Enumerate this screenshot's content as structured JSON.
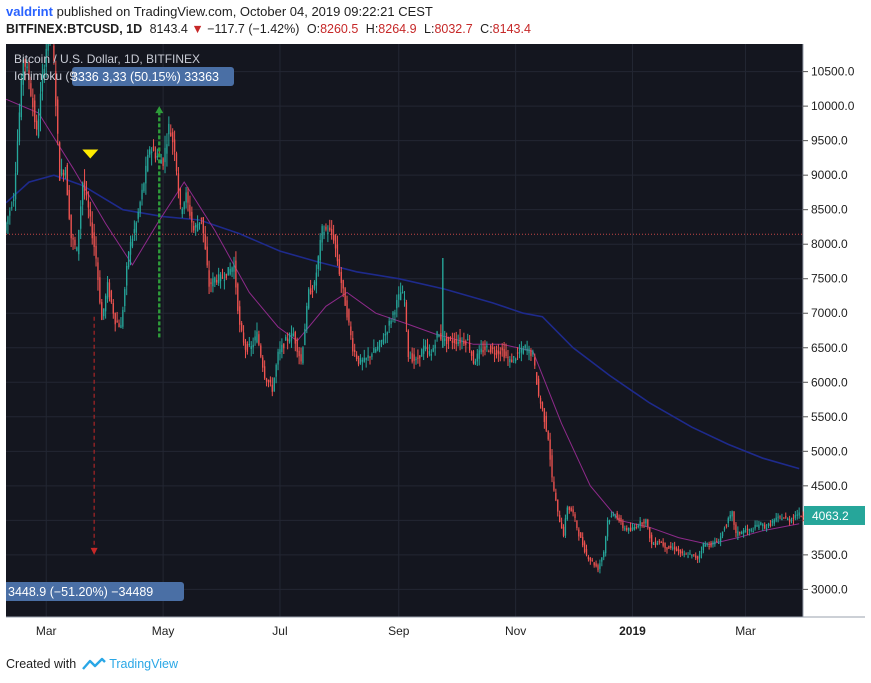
{
  "header": {
    "author": "valdrint",
    "published_text": "published on TradingView.com, October 04, 2019 09:22:21 CEST",
    "symbol": "BITFINEX:BTCUSD, 1D",
    "last": "8143.4",
    "change": "−117.7 (−1.42%)",
    "o_label": "O:",
    "o_value": "8260.5",
    "h_label": "H:",
    "h_value": "8264.9",
    "l_label": "L:",
    "l_value": "8032.7",
    "c_label": "C:",
    "c_value": "8143.4"
  },
  "legend": {
    "title": "Bitcoin / U.S. Dollar, 1D, BITFINEX",
    "indicator": "Ichimoku (9"
  },
  "footer": {
    "created_with": "Created with",
    "brand": "TradingView"
  },
  "colors": {
    "background": "#14161f",
    "grid": "#232733",
    "up": "#26a69a",
    "down": "#ef5350",
    "ma_slow": "#1e2a8c",
    "ma_fast": "#8e2a8a",
    "price_line": "#ef5350",
    "price_label_bg": "#26a69a",
    "measure_bg": "#4a6fa5",
    "marker": "#ffeb00",
    "measure_up": "#2e9d3a",
    "measure_down": "#c62828"
  },
  "chart_data": {
    "type": "candlestick",
    "y_ticks": [
      3000,
      3500,
      4000,
      4500,
      5000,
      5500,
      6000,
      6500,
      7000,
      7500,
      8000,
      8500,
      9000,
      9500,
      10000,
      10500
    ],
    "y_tick_labels": [
      "3000.0",
      "3500.0",
      "4000.0",
      "4500.0",
      "5000.0",
      "5500.0",
      "6000.0",
      "6500.0",
      "7000.0",
      "7500.0",
      "8000.0",
      "8500.0",
      "9000.0",
      "9500.0",
      "10000.0",
      "10500.0"
    ],
    "ylim": [
      2600,
      10900
    ],
    "x_range": [
      "2018-02-08",
      "2019-03-31"
    ],
    "x_ticks": [
      {
        "date": "2018-03-01",
        "label": "Mar"
      },
      {
        "date": "2018-05-01",
        "label": "May"
      },
      {
        "date": "2018-07-01",
        "label": "Jul"
      },
      {
        "date": "2018-09-01",
        "label": "Sep"
      },
      {
        "date": "2018-11-01",
        "label": "Nov"
      },
      {
        "date": "2019-01-01",
        "label": "2019"
      },
      {
        "date": "2019-03-01",
        "label": "Mar"
      }
    ],
    "current_price": 8143.4,
    "last_price_label": "4063.2",
    "last_price_value": 4063.2,
    "price_path": [
      [
        "2018-02-08",
        8200
      ],
      [
        "2018-02-13",
        8700
      ],
      [
        "2018-02-18",
        10700
      ],
      [
        "2018-02-21",
        10400
      ],
      [
        "2018-02-25",
        9600
      ],
      [
        "2018-02-28",
        10400
      ],
      [
        "2018-03-04",
        11300
      ],
      [
        "2018-03-06",
        10600
      ],
      [
        "2018-03-09",
        9000
      ],
      [
        "2018-03-12",
        9100
      ],
      [
        "2018-03-15",
        8100
      ],
      [
        "2018-03-18",
        7900
      ],
      [
        "2018-03-21",
        8900
      ],
      [
        "2018-03-24",
        8500
      ],
      [
        "2018-03-28",
        7800
      ],
      [
        "2018-03-31",
        6900
      ],
      [
        "2018-04-03",
        7400
      ],
      [
        "2018-04-07",
        6900
      ],
      [
        "2018-04-10",
        6800
      ],
      [
        "2018-04-14",
        7900
      ],
      [
        "2018-04-18",
        8300
      ],
      [
        "2018-04-22",
        8900
      ],
      [
        "2018-04-25",
        9400
      ],
      [
        "2018-04-28",
        9300
      ],
      [
        "2018-05-02",
        9200
      ],
      [
        "2018-05-05",
        9700
      ],
      [
        "2018-05-08",
        9400
      ],
      [
        "2018-05-11",
        8500
      ],
      [
        "2018-05-14",
        8700
      ],
      [
        "2018-05-18",
        8200
      ],
      [
        "2018-05-22",
        8400
      ],
      [
        "2018-05-26",
        7400
      ],
      [
        "2018-05-29",
        7500
      ],
      [
        "2018-06-01",
        7500
      ],
      [
        "2018-06-05",
        7600
      ],
      [
        "2018-06-08",
        7700
      ],
      [
        "2018-06-11",
        6800
      ],
      [
        "2018-06-14",
        6500
      ],
      [
        "2018-06-17",
        6500
      ],
      [
        "2018-06-20",
        6700
      ],
      [
        "2018-06-24",
        6100
      ],
      [
        "2018-06-28",
        5900
      ],
      [
        "2018-07-01",
        6400
      ],
      [
        "2018-07-05",
        6600
      ],
      [
        "2018-07-09",
        6700
      ],
      [
        "2018-07-13",
        6300
      ],
      [
        "2018-07-17",
        7300
      ],
      [
        "2018-07-20",
        7400
      ],
      [
        "2018-07-24",
        8200
      ],
      [
        "2018-07-27",
        8200
      ],
      [
        "2018-07-30",
        8100
      ],
      [
        "2018-08-02",
        7600
      ],
      [
        "2018-08-06",
        7000
      ],
      [
        "2018-08-09",
        6500
      ],
      [
        "2018-08-12",
        6300
      ],
      [
        "2018-08-15",
        6300
      ],
      [
        "2018-08-18",
        6400
      ],
      [
        "2018-08-22",
        6500
      ],
      [
        "2018-08-26",
        6700
      ],
      [
        "2018-08-30",
        7000
      ],
      [
        "2018-09-03",
        7300
      ],
      [
        "2018-09-05",
        7200
      ],
      [
        "2018-09-07",
        6400
      ],
      [
        "2018-09-11",
        6300
      ],
      [
        "2018-09-15",
        6500
      ],
      [
        "2018-09-19",
        6400
      ],
      [
        "2018-09-22",
        6700
      ],
      [
        "2018-09-26",
        6600
      ],
      [
        "2018-09-30",
        6600
      ],
      [
        "2018-10-04",
        6600
      ],
      [
        "2018-10-08",
        6600
      ],
      [
        "2018-10-11",
        6300
      ],
      [
        "2018-10-15",
        6450
      ],
      [
        "2018-10-18",
        6500
      ],
      [
        "2018-10-22",
        6450
      ],
      [
        "2018-10-26",
        6450
      ],
      [
        "2018-10-30",
        6300
      ],
      [
        "2018-11-03",
        6400
      ],
      [
        "2018-11-07",
        6500
      ],
      [
        "2018-11-11",
        6400
      ],
      [
        "2018-11-14",
        5800
      ],
      [
        "2018-11-16",
        5600
      ],
      [
        "2018-11-19",
        5200
      ],
      [
        "2018-11-21",
        4600
      ],
      [
        "2018-11-24",
        4100
      ],
      [
        "2018-11-27",
        3800
      ],
      [
        "2018-11-29",
        4200
      ],
      [
        "2018-12-02",
        4100
      ],
      [
        "2018-12-05",
        3800
      ],
      [
        "2018-12-09",
        3500
      ],
      [
        "2018-12-12",
        3400
      ],
      [
        "2018-12-15",
        3300
      ],
      [
        "2018-12-18",
        3550
      ],
      [
        "2018-12-20",
        4000
      ],
      [
        "2018-12-24",
        4100
      ],
      [
        "2018-12-28",
        3900
      ],
      [
        "2019-01-01",
        3850
      ],
      [
        "2019-01-05",
        3950
      ],
      [
        "2019-01-09",
        4000
      ],
      [
        "2019-01-12",
        3650
      ],
      [
        "2019-01-16",
        3700
      ],
      [
        "2019-01-20",
        3600
      ],
      [
        "2019-01-24",
        3600
      ],
      [
        "2019-01-28",
        3500
      ],
      [
        "2019-02-01",
        3500
      ],
      [
        "2019-02-05",
        3450
      ],
      [
        "2019-02-08",
        3650
      ],
      [
        "2019-02-12",
        3650
      ],
      [
        "2019-02-16",
        3700
      ],
      [
        "2019-02-19",
        3900
      ],
      [
        "2019-02-23",
        4100
      ],
      [
        "2019-02-25",
        3800
      ],
      [
        "2019-03-01",
        3850
      ],
      [
        "2019-03-05",
        3850
      ],
      [
        "2019-03-09",
        3950
      ],
      [
        "2019-03-13",
        3900
      ],
      [
        "2019-03-17",
        4000
      ],
      [
        "2019-03-21",
        4050
      ],
      [
        "2019-03-25",
        4000
      ],
      [
        "2019-03-29",
        4100
      ],
      [
        "2019-03-31",
        4063
      ]
    ],
    "wicks": [
      {
        "date": "2018-09-24",
        "high": 7800,
        "low": 6500
      }
    ],
    "ma_slow": [
      [
        "2018-02-08",
        8600
      ],
      [
        "2018-02-20",
        8900
      ],
      [
        "2018-03-05",
        9000
      ],
      [
        "2018-03-20",
        8850
      ],
      [
        "2018-04-10",
        8500
      ],
      [
        "2018-05-01",
        8400
      ],
      [
        "2018-05-20",
        8350
      ],
      [
        "2018-06-10",
        8150
      ],
      [
        "2018-07-01",
        7900
      ],
      [
        "2018-07-20",
        7750
      ],
      [
        "2018-08-10",
        7600
      ],
      [
        "2018-09-01",
        7500
      ],
      [
        "2018-09-25",
        7350
      ],
      [
        "2018-10-20",
        7150
      ],
      [
        "2018-11-05",
        7000
      ],
      [
        "2018-11-15",
        6950
      ],
      [
        "2018-12-01",
        6500
      ],
      [
        "2018-12-20",
        6100
      ],
      [
        "2019-01-10",
        5700
      ],
      [
        "2019-02-01",
        5350
      ],
      [
        "2019-02-20",
        5100
      ],
      [
        "2019-03-10",
        4900
      ],
      [
        "2019-03-29",
        4750
      ]
    ],
    "ma_fast": [
      [
        "2018-02-08",
        10100
      ],
      [
        "2018-02-25",
        9900
      ],
      [
        "2018-03-15",
        9100
      ],
      [
        "2018-04-01",
        8300
      ],
      [
        "2018-04-15",
        7700
      ],
      [
        "2018-04-28",
        8300
      ],
      [
        "2018-05-12",
        8900
      ],
      [
        "2018-05-28",
        8200
      ],
      [
        "2018-06-15",
        7300
      ],
      [
        "2018-06-30",
        6800
      ],
      [
        "2018-07-10",
        6600
      ],
      [
        "2018-07-25",
        7100
      ],
      [
        "2018-08-05",
        7300
      ],
      [
        "2018-08-20",
        7000
      ],
      [
        "2018-09-05",
        6850
      ],
      [
        "2018-09-20",
        6700
      ],
      [
        "2018-10-10",
        6550
      ],
      [
        "2018-10-25",
        6550
      ],
      [
        "2018-11-10",
        6450
      ],
      [
        "2018-11-25",
        5400
      ],
      [
        "2018-12-10",
        4500
      ],
      [
        "2018-12-25",
        4000
      ],
      [
        "2019-01-10",
        3900
      ],
      [
        "2019-01-25",
        3750
      ],
      [
        "2019-02-10",
        3650
      ],
      [
        "2019-02-25",
        3750
      ],
      [
        "2019-03-10",
        3850
      ],
      [
        "2019-03-29",
        3950
      ]
    ],
    "annotations": [
      {
        "kind": "triangle-marker",
        "date": "2018-03-24",
        "price": 9300
      },
      {
        "kind": "measure-up",
        "date": "2018-04-29",
        "from": 6650,
        "to": 10000,
        "label": "3336 3,33 (50.15%) 33363"
      },
      {
        "kind": "measure-down",
        "date": "2018-03-26",
        "from": 6950,
        "to": 3500,
        "label": "3448.9 (−51.20%) −34489"
      }
    ]
  }
}
